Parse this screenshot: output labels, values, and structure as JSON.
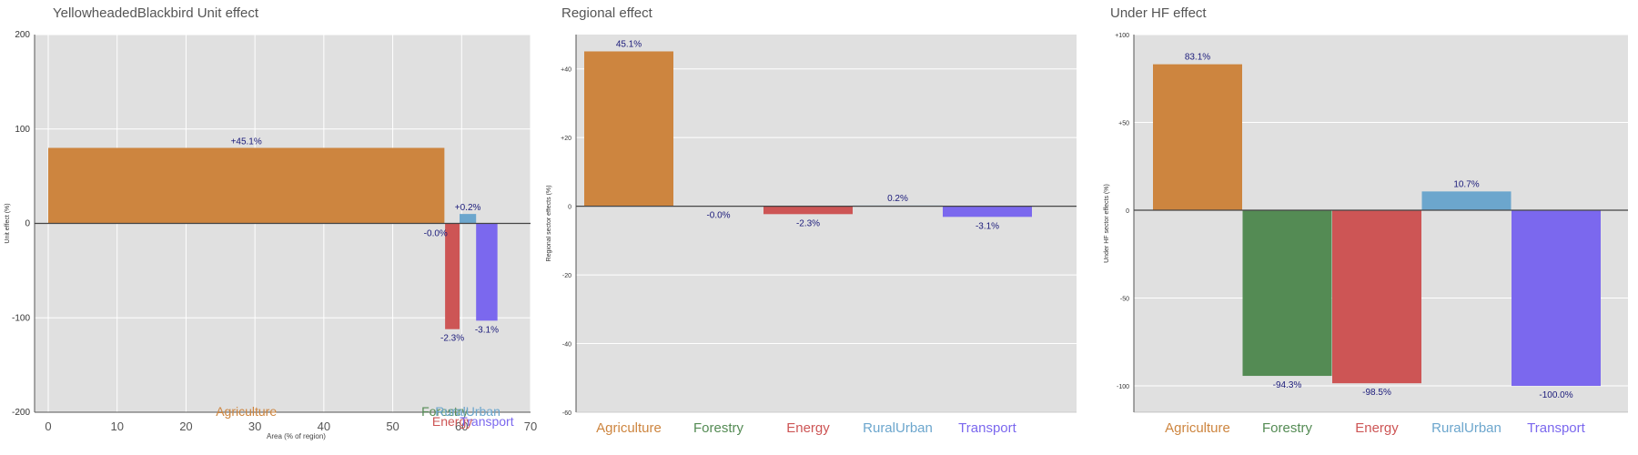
{
  "chart_data": [
    {
      "type": "bar",
      "title": "YellowheadedBlackbird Unit effect",
      "xlabel": "Area (% of region)",
      "ylabel": "Unit effect (%)",
      "xlim": [
        -3,
        70
      ],
      "ylim": [
        -200,
        200
      ],
      "xticks": [
        0,
        10,
        20,
        30,
        40,
        50,
        60,
        70
      ],
      "yticks": [
        -200,
        -100,
        0,
        100,
        200
      ],
      "grid": true,
      "bars": [
        {
          "name": "Agriculture",
          "x0": 0,
          "x1": 57.5,
          "value": 80,
          "label": "+45.1%",
          "color": "#cd853f"
        },
        {
          "name": "Forestry",
          "x0": 57.5,
          "x1": 57.6,
          "value": -0.05,
          "label": "-0.0%",
          "color": "#548b54"
        },
        {
          "name": "Energy",
          "x0": 57.6,
          "x1": 59.7,
          "value": -112,
          "label": "-2.3%",
          "color": "#cd5555"
        },
        {
          "name": "RuralUrban",
          "x0": 59.7,
          "x1": 62.1,
          "value": 10,
          "label": "+0.2%",
          "color": "#6ca6cd"
        },
        {
          "name": "Transport",
          "x0": 62.1,
          "x1": 65.2,
          "value": -103,
          "label": "-3.1%",
          "color": "#7b68ee"
        }
      ]
    },
    {
      "type": "bar",
      "title": "Regional effect",
      "xlabel": "",
      "ylabel": "Regional sector effects (%)",
      "ylim": [
        -60,
        50
      ],
      "yticks": [
        -60,
        -40,
        -20,
        0,
        20,
        40
      ],
      "ytick_labels": [
        "-60",
        "-40",
        "-20",
        "0",
        "+20",
        "+40"
      ],
      "grid": true,
      "categories": [
        "Agriculture",
        "Forestry",
        "Energy",
        "RuralUrban",
        "Transport"
      ],
      "colors": [
        "#cd853f",
        "#548b54",
        "#cd5555",
        "#6ca6cd",
        "#7b68ee"
      ],
      "values": [
        45.1,
        -0.0,
        -2.3,
        0.2,
        -3.1
      ],
      "labels": [
        "45.1%",
        "-0.0%",
        "-2.3%",
        "0.2%",
        "-3.1%"
      ]
    },
    {
      "type": "bar",
      "title": "Under HF effect",
      "xlabel": "",
      "ylabel": "Under HF sector effects (%)",
      "ylim": [
        -115,
        100
      ],
      "yticks": [
        -100,
        -50,
        0,
        50,
        100
      ],
      "ytick_labels": [
        "-100",
        "-50",
        "0",
        "+50",
        "+100"
      ],
      "grid": true,
      "categories": [
        "Agriculture",
        "Forestry",
        "Energy",
        "RuralUrban",
        "Transport"
      ],
      "colors": [
        "#cd853f",
        "#548b54",
        "#cd5555",
        "#6ca6cd",
        "#7b68ee"
      ],
      "values": [
        83.1,
        -94.3,
        -98.5,
        10.7,
        -100.0
      ],
      "labels": [
        "83.1%",
        "-94.3%",
        "-98.5%",
        "10.7%",
        "-100.0%"
      ]
    }
  ]
}
